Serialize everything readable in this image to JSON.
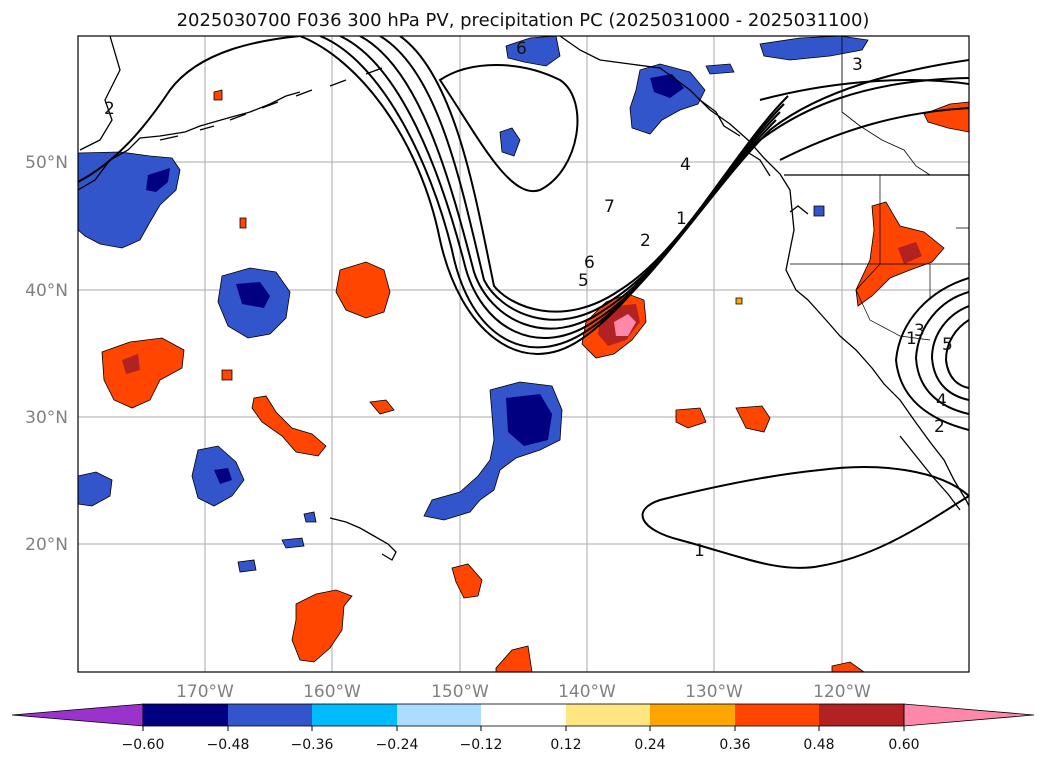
{
  "title": "2025030700 F036 300 hPa PV, precipitation PC (2025031000 - 2025031100)",
  "map": {
    "lat_labels": [
      "50°N",
      "40°N",
      "30°N",
      "20°N"
    ],
    "lon_labels": [
      "170°W",
      "160°W",
      "150°W",
      "140°W",
      "130°W",
      "120°W"
    ],
    "contour_labels": [
      "1",
      "2",
      "4",
      "7",
      "5",
      "6",
      "2",
      "6",
      "3",
      "1",
      "3",
      "5",
      "4",
      "2",
      "1"
    ]
  },
  "colorbar": {
    "tick_labels": [
      "−0.60",
      "−0.48",
      "−0.36",
      "−0.24",
      "−0.12",
      "0.12",
      "0.24",
      "0.36",
      "0.48",
      "0.60"
    ],
    "colors": [
      "#9933cc",
      "#000080",
      "#3355cc",
      "#00bbff",
      "#aaddff",
      "#ffffff",
      "#ffe680",
      "#ffa500",
      "#ff4500",
      "#b22222",
      "#ff88aa"
    ]
  },
  "colors": {
    "ocean": "#ffffff",
    "grid": "#aaaaaa",
    "contour": "#000000",
    "label": "#808080"
  }
}
